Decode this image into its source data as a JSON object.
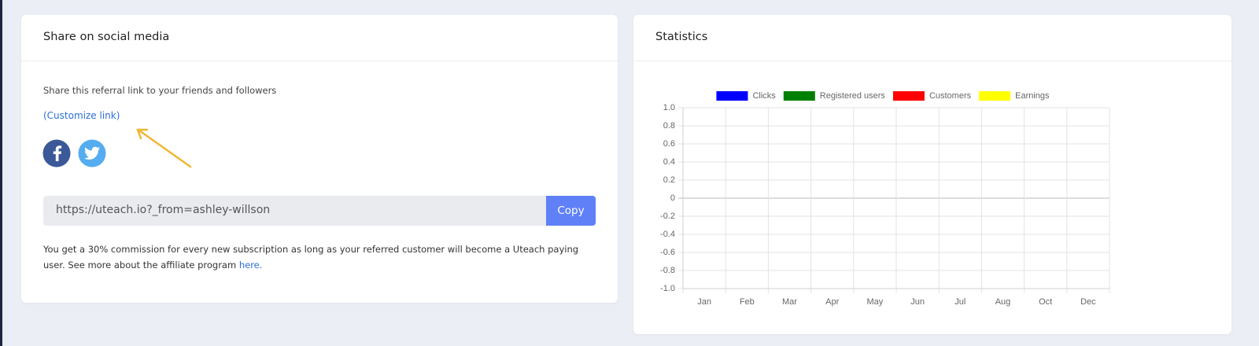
{
  "share_card": {
    "title": "Share on social media",
    "description": "Share this referral link to your friends and followers",
    "customize_link": "(Customize link)",
    "referral_url": "https://uteach.io?_from=ashley-willson",
    "copy_button": "Copy",
    "commission_text": "You get a 30% commission for every new subscription as long as your referred customer will become a Uteach paying user. See more about the affiliate program",
    "commission_link": "here."
  },
  "statistics_card": {
    "title": "Statistics"
  },
  "chart_data": {
    "type": "line",
    "categories": [
      "Jan",
      "Feb",
      "Mar",
      "Apr",
      "May",
      "Jun",
      "Jul",
      "Aug",
      "Oct",
      "Dec"
    ],
    "series": [
      {
        "name": "Clicks",
        "color": "#0000ff",
        "values": [
          null,
          null,
          null,
          null,
          null,
          null,
          null,
          null,
          null,
          null
        ]
      },
      {
        "name": "Registered users",
        "color": "#008000",
        "values": [
          null,
          null,
          null,
          null,
          null,
          null,
          null,
          null,
          null,
          null
        ]
      },
      {
        "name": "Customers",
        "color": "#ff0000",
        "values": [
          null,
          null,
          null,
          null,
          null,
          null,
          null,
          null,
          null,
          null
        ]
      },
      {
        "name": "Earnings",
        "color": "#ffff00",
        "values": [
          null,
          null,
          null,
          null,
          null,
          null,
          null,
          null,
          null,
          null
        ]
      }
    ],
    "ylim": [
      -1,
      1
    ],
    "yticks": [
      {
        "value": -1,
        "label": "-1.0"
      },
      -0.8,
      -0.6,
      -0.4,
      -0.2,
      0,
      0.2,
      0.4,
      0.6,
      0.8,
      {
        "value": 1,
        "label": "1.0"
      }
    ],
    "grid": true,
    "legend": "top"
  }
}
